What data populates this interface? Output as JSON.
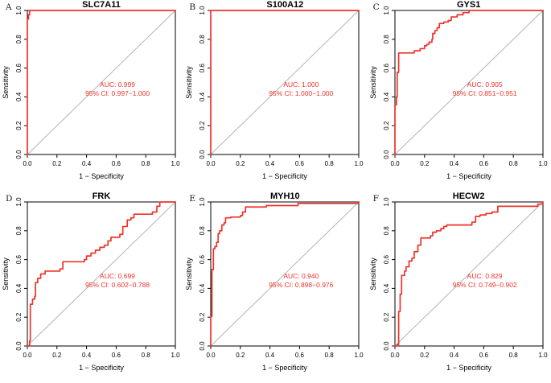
{
  "figure": {
    "background": "#ffffff",
    "curve_color": "#ee332a",
    "diagonal_color": "#b4b4b4",
    "axis_color": "#000000",
    "text_color": "#000000",
    "annotation_color": "#ee332a",
    "xlabel": "1 − Specificity",
    "ylabel": "Sensitivity",
    "x_ticks": [
      "0.0",
      "0.2",
      "0.4",
      "0.6",
      "0.8",
      "1.0"
    ],
    "y_ticks": [
      "0.0",
      "0.2",
      "0.4",
      "0.6",
      "0.8",
      "1.0"
    ]
  },
  "chart_data": [
    {
      "type": "line",
      "panel_label": "A",
      "title": "SLC7A11",
      "xlabel": "1 − Specificity",
      "ylabel": "Sensitivity",
      "xlim": [
        0,
        1
      ],
      "ylim": [
        0,
        1
      ],
      "auc": 0.999,
      "ci_low": 0.997,
      "ci_high": 1.0,
      "annotation": {
        "line1": "AUC: 0.999",
        "line2": "95% CI: 0.997−1.000"
      },
      "diagonal_reference": true,
      "roc_points": [
        [
          0,
          0
        ],
        [
          0,
          0.94
        ],
        [
          0.008,
          0.94
        ],
        [
          0.008,
          0.97
        ],
        [
          0.015,
          0.97
        ],
        [
          0.015,
          1
        ],
        [
          1,
          1
        ]
      ]
    },
    {
      "type": "line",
      "panel_label": "B",
      "title": "S100A12",
      "xlabel": "1 − Specificity",
      "ylabel": "Sensitivity",
      "xlim": [
        0,
        1
      ],
      "ylim": [
        0,
        1
      ],
      "auc": 1.0,
      "ci_low": 1.0,
      "ci_high": 1.0,
      "annotation": {
        "line1": "AUC: 1.000",
        "line2": "95% CI: 1.000−1.000"
      },
      "diagonal_reference": true,
      "roc_points": [
        [
          0,
          0
        ],
        [
          0,
          1
        ],
        [
          1,
          1
        ]
      ]
    },
    {
      "type": "line",
      "panel_label": "C",
      "title": "GYS1",
      "xlabel": "1 − Specificity",
      "ylabel": "Sensitivity",
      "xlim": [
        0,
        1
      ],
      "ylim": [
        0,
        1
      ],
      "auc": 0.905,
      "ci_low": 0.851,
      "ci_high": 0.951,
      "annotation": {
        "line1": "AUC: 0.905",
        "line2": "95% CI: 0.851−0.951"
      },
      "diagonal_reference": true,
      "roc_points": [
        [
          0,
          0
        ],
        [
          0,
          0.345
        ],
        [
          0.01,
          0.345
        ],
        [
          0.01,
          0.4
        ],
        [
          0.015,
          0.4
        ],
        [
          0.015,
          0.57
        ],
        [
          0.025,
          0.57
        ],
        [
          0.025,
          0.705
        ],
        [
          0.13,
          0.705
        ],
        [
          0.13,
          0.72
        ],
        [
          0.17,
          0.72
        ],
        [
          0.17,
          0.735
        ],
        [
          0.2,
          0.735
        ],
        [
          0.2,
          0.755
        ],
        [
          0.215,
          0.755
        ],
        [
          0.215,
          0.765
        ],
        [
          0.23,
          0.765
        ],
        [
          0.23,
          0.78
        ],
        [
          0.25,
          0.78
        ],
        [
          0.25,
          0.8
        ],
        [
          0.255,
          0.8
        ],
        [
          0.255,
          0.84
        ],
        [
          0.27,
          0.84
        ],
        [
          0.27,
          0.86
        ],
        [
          0.285,
          0.86
        ],
        [
          0.285,
          0.88
        ],
        [
          0.3,
          0.88
        ],
        [
          0.3,
          0.91
        ],
        [
          0.33,
          0.91
        ],
        [
          0.33,
          0.92
        ],
        [
          0.36,
          0.92
        ],
        [
          0.36,
          0.93
        ],
        [
          0.38,
          0.93
        ],
        [
          0.38,
          0.955
        ],
        [
          0.42,
          0.955
        ],
        [
          0.42,
          0.97
        ],
        [
          0.46,
          0.97
        ],
        [
          0.46,
          0.985
        ],
        [
          0.5,
          0.985
        ],
        [
          0.5,
          1
        ],
        [
          1,
          1
        ]
      ]
    },
    {
      "type": "line",
      "panel_label": "D",
      "title": "FRK",
      "xlabel": "1 − Specificity",
      "ylabel": "Sensitivity",
      "xlim": [
        0,
        1
      ],
      "ylim": [
        0,
        1
      ],
      "auc": 0.699,
      "ci_low": 0.602,
      "ci_high": 0.788,
      "annotation": {
        "line1": "AUC: 0.699",
        "line2": "95% CI: 0.602−0.788"
      },
      "diagonal_reference": true,
      "roc_points": [
        [
          0,
          0
        ],
        [
          0.015,
          0
        ],
        [
          0.015,
          0.035
        ],
        [
          0.02,
          0.035
        ],
        [
          0.02,
          0.29
        ],
        [
          0.035,
          0.29
        ],
        [
          0.035,
          0.325
        ],
        [
          0.05,
          0.325
        ],
        [
          0.05,
          0.345
        ],
        [
          0.055,
          0.345
        ],
        [
          0.055,
          0.44
        ],
        [
          0.07,
          0.44
        ],
        [
          0.07,
          0.47
        ],
        [
          0.09,
          0.47
        ],
        [
          0.09,
          0.5
        ],
        [
          0.12,
          0.5
        ],
        [
          0.12,
          0.52
        ],
        [
          0.22,
          0.52
        ],
        [
          0.22,
          0.535
        ],
        [
          0.24,
          0.535
        ],
        [
          0.24,
          0.585
        ],
        [
          0.385,
          0.585
        ],
        [
          0.385,
          0.6
        ],
        [
          0.4,
          0.6
        ],
        [
          0.4,
          0.625
        ],
        [
          0.43,
          0.625
        ],
        [
          0.43,
          0.645
        ],
        [
          0.46,
          0.645
        ],
        [
          0.46,
          0.665
        ],
        [
          0.49,
          0.665
        ],
        [
          0.49,
          0.685
        ],
        [
          0.52,
          0.685
        ],
        [
          0.52,
          0.7
        ],
        [
          0.545,
          0.7
        ],
        [
          0.545,
          0.73
        ],
        [
          0.565,
          0.73
        ],
        [
          0.565,
          0.755
        ],
        [
          0.625,
          0.755
        ],
        [
          0.625,
          0.775
        ],
        [
          0.645,
          0.775
        ],
        [
          0.645,
          0.83
        ],
        [
          0.675,
          0.83
        ],
        [
          0.675,
          0.875
        ],
        [
          0.7,
          0.875
        ],
        [
          0.7,
          0.89
        ],
        [
          0.72,
          0.89
        ],
        [
          0.72,
          0.915
        ],
        [
          0.845,
          0.915
        ],
        [
          0.845,
          0.93
        ],
        [
          0.875,
          0.93
        ],
        [
          0.875,
          0.97
        ],
        [
          0.895,
          0.97
        ],
        [
          0.895,
          1
        ],
        [
          1,
          1
        ]
      ]
    },
    {
      "type": "line",
      "panel_label": "E",
      "title": "MYH10",
      "xlabel": "1 − Specificity",
      "ylabel": "Sensitivity",
      "xlim": [
        0,
        1
      ],
      "ylim": [
        0,
        1
      ],
      "auc": 0.94,
      "ci_low": 0.898,
      "ci_high": 0.976,
      "annotation": {
        "line1": "AUC: 0.940",
        "line2": "95% CI: 0.898−0.976"
      },
      "diagonal_reference": true,
      "roc_points": [
        [
          0,
          0
        ],
        [
          0,
          0.205
        ],
        [
          0.008,
          0.205
        ],
        [
          0.008,
          0.53
        ],
        [
          0.018,
          0.53
        ],
        [
          0.018,
          0.675
        ],
        [
          0.028,
          0.675
        ],
        [
          0.028,
          0.69
        ],
        [
          0.04,
          0.69
        ],
        [
          0.04,
          0.72
        ],
        [
          0.05,
          0.72
        ],
        [
          0.05,
          0.78
        ],
        [
          0.06,
          0.78
        ],
        [
          0.06,
          0.8
        ],
        [
          0.075,
          0.8
        ],
        [
          0.075,
          0.84
        ],
        [
          0.09,
          0.84
        ],
        [
          0.09,
          0.855
        ],
        [
          0.1,
          0.855
        ],
        [
          0.1,
          0.89
        ],
        [
          0.135,
          0.89
        ],
        [
          0.135,
          0.895
        ],
        [
          0.2,
          0.895
        ],
        [
          0.2,
          0.905
        ],
        [
          0.215,
          0.905
        ],
        [
          0.215,
          0.93
        ],
        [
          0.235,
          0.93
        ],
        [
          0.235,
          0.965
        ],
        [
          0.375,
          0.965
        ],
        [
          0.375,
          0.975
        ],
        [
          0.59,
          0.975
        ],
        [
          0.59,
          0.99
        ],
        [
          0.995,
          0.99
        ],
        [
          0.995,
          1
        ],
        [
          1,
          1
        ]
      ]
    },
    {
      "type": "line",
      "panel_label": "F",
      "title": "HECW2",
      "xlabel": "1 − Specificity",
      "ylabel": "Sensitivity",
      "xlim": [
        0,
        1
      ],
      "ylim": [
        0,
        1
      ],
      "auc": 0.829,
      "ci_low": 0.749,
      "ci_high": 0.902,
      "annotation": {
        "line1": "AUC: 0.829",
        "line2": "95% CI: 0.749−0.902"
      },
      "diagonal_reference": true,
      "roc_points": [
        [
          0,
          0
        ],
        [
          0.015,
          0
        ],
        [
          0.015,
          0.01
        ],
        [
          0.025,
          0.01
        ],
        [
          0.025,
          0.24
        ],
        [
          0.035,
          0.24
        ],
        [
          0.035,
          0.36
        ],
        [
          0.045,
          0.36
        ],
        [
          0.045,
          0.49
        ],
        [
          0.065,
          0.49
        ],
        [
          0.065,
          0.52
        ],
        [
          0.075,
          0.52
        ],
        [
          0.075,
          0.55
        ],
        [
          0.095,
          0.55
        ],
        [
          0.095,
          0.59
        ],
        [
          0.115,
          0.59
        ],
        [
          0.115,
          0.61
        ],
        [
          0.13,
          0.61
        ],
        [
          0.13,
          0.655
        ],
        [
          0.155,
          0.655
        ],
        [
          0.155,
          0.7
        ],
        [
          0.175,
          0.7
        ],
        [
          0.175,
          0.75
        ],
        [
          0.24,
          0.75
        ],
        [
          0.24,
          0.765
        ],
        [
          0.255,
          0.765
        ],
        [
          0.255,
          0.79
        ],
        [
          0.28,
          0.79
        ],
        [
          0.28,
          0.8
        ],
        [
          0.31,
          0.8
        ],
        [
          0.31,
          0.815
        ],
        [
          0.33,
          0.815
        ],
        [
          0.33,
          0.83
        ],
        [
          0.35,
          0.83
        ],
        [
          0.35,
          0.84
        ],
        [
          0.52,
          0.84
        ],
        [
          0.52,
          0.86
        ],
        [
          0.545,
          0.86
        ],
        [
          0.545,
          0.9
        ],
        [
          0.575,
          0.9
        ],
        [
          0.575,
          0.91
        ],
        [
          0.615,
          0.91
        ],
        [
          0.615,
          0.92
        ],
        [
          0.655,
          0.92
        ],
        [
          0.655,
          0.93
        ],
        [
          0.695,
          0.93
        ],
        [
          0.695,
          0.97
        ],
        [
          0.965,
          0.97
        ],
        [
          0.965,
          0.985
        ],
        [
          1,
          0.985
        ],
        [
          1,
          1
        ]
      ]
    }
  ]
}
